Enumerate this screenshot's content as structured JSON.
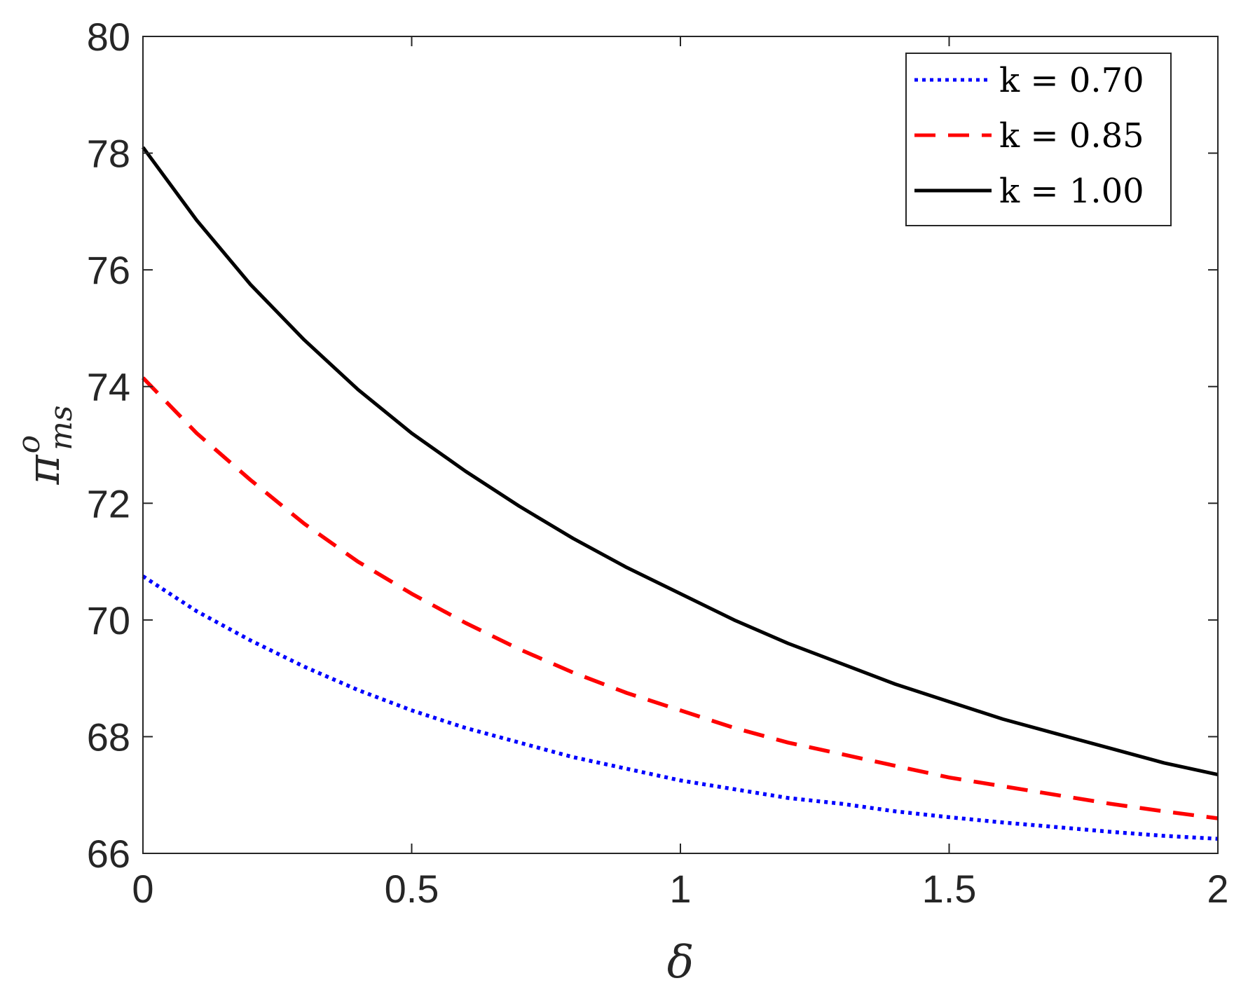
{
  "chart_data": {
    "type": "line",
    "xlabel": "δ",
    "ylabel": "π",
    "ylabel_superscript": "o",
    "ylabel_subscript": "ms",
    "xlim": [
      0,
      2
    ],
    "ylim": [
      66,
      80
    ],
    "xticks": [
      0,
      0.5,
      1,
      1.5,
      2
    ],
    "xtick_labels": [
      "0",
      "0.5",
      "1",
      "1.5",
      "2"
    ],
    "yticks": [
      66,
      68,
      70,
      72,
      74,
      76,
      78,
      80
    ],
    "ytick_labels": [
      "66",
      "68",
      "70",
      "72",
      "74",
      "76",
      "78",
      "80"
    ],
    "grid": false,
    "legend_position": "top-right",
    "x": [
      0,
      0.1,
      0.2,
      0.3,
      0.4,
      0.5,
      0.6,
      0.7,
      0.8,
      0.9,
      1.0,
      1.1,
      1.2,
      1.3,
      1.4,
      1.5,
      1.6,
      1.7,
      1.8,
      1.9,
      2.0
    ],
    "series": [
      {
        "name": "k = 0.70",
        "color": "#0000ff",
        "style": "dotted",
        "values": [
          70.75,
          70.15,
          69.65,
          69.2,
          68.8,
          68.45,
          68.15,
          67.9,
          67.65,
          67.45,
          67.25,
          67.1,
          66.95,
          66.85,
          66.72,
          66.62,
          66.53,
          66.45,
          66.37,
          66.3,
          66.25
        ]
      },
      {
        "name": "k = 0.85",
        "color": "#ff0000",
        "style": "dashed",
        "values": [
          74.15,
          73.2,
          72.4,
          71.65,
          71.0,
          70.45,
          69.95,
          69.5,
          69.1,
          68.75,
          68.45,
          68.15,
          67.9,
          67.7,
          67.5,
          67.3,
          67.15,
          67.0,
          66.85,
          66.72,
          66.6
        ]
      },
      {
        "name": "k = 1.00",
        "color": "#000000",
        "style": "solid",
        "values": [
          78.1,
          76.85,
          75.75,
          74.8,
          73.95,
          73.2,
          72.55,
          71.95,
          71.4,
          70.9,
          70.45,
          70.0,
          69.6,
          69.25,
          68.9,
          68.6,
          68.3,
          68.05,
          67.8,
          67.55,
          67.35
        ]
      }
    ]
  }
}
